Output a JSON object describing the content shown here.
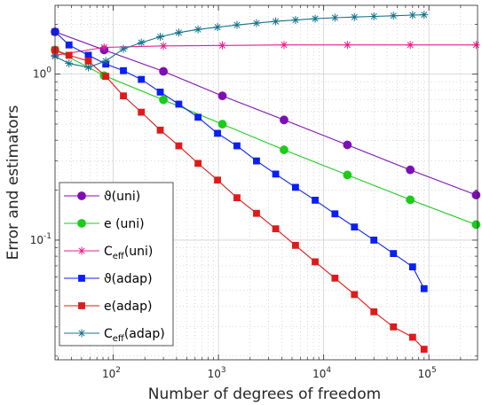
{
  "chart_data": {
    "type": "line",
    "title": "",
    "xlabel": "Number of degrees of freedom",
    "ylabel": "Error and estimators",
    "xscale": "log",
    "yscale": "log",
    "xlim": [
      28,
      290000
    ],
    "ylim": [
      0.019,
      2.6
    ],
    "grid": true,
    "minor_grid": true,
    "legend_position": "bottom-left",
    "x_ticks": [
      {
        "value": 100,
        "base": "10",
        "exp": "2"
      },
      {
        "value": 1000,
        "base": "10",
        "exp": "3"
      },
      {
        "value": 10000,
        "base": "10",
        "exp": "4"
      },
      {
        "value": 100000,
        "base": "10",
        "exp": "5"
      }
    ],
    "y_ticks": [
      {
        "value": 0.1,
        "base": "10",
        "exp": "-1"
      },
      {
        "value": 1,
        "base": "10",
        "exp": "0"
      }
    ],
    "series": [
      {
        "name": "ϑ(uni)",
        "name_main": "ϑ",
        "name_sub": "",
        "name_tail": "(uni)",
        "color": "#7e0eb4",
        "marker": "circle",
        "x": [
          28,
          82,
          300,
          1090,
          4200,
          16800,
          66500,
          281000
        ],
        "y": [
          1.8,
          1.4,
          1.04,
          0.74,
          0.53,
          0.375,
          0.265,
          0.187
        ]
      },
      {
        "name": "e (uni)",
        "name_main": "e (uni)",
        "name_sub": "",
        "name_tail": "",
        "color": "#1bcc1b",
        "marker": "circle",
        "x": [
          28,
          82,
          300,
          1090,
          4200,
          16800,
          66500,
          281000
        ],
        "y": [
          1.4,
          0.98,
          0.7,
          0.5,
          0.35,
          0.247,
          0.175,
          0.124
        ]
      },
      {
        "name": "Ceff(uni)",
        "name_main": "C",
        "name_sub": "eff",
        "name_tail": "(uni)",
        "color": "#e81d8e",
        "marker": "star",
        "x": [
          28,
          82,
          300,
          1090,
          4200,
          16800,
          66500,
          281000
        ],
        "y": [
          1.3,
          1.45,
          1.48,
          1.49,
          1.5,
          1.5,
          1.5,
          1.5
        ]
      },
      {
        "name": "ϑ(adap)",
        "name_main": "ϑ",
        "name_sub": "",
        "name_tail": "(adap)",
        "color": "#0a1ff3",
        "marker": "square",
        "x": [
          28,
          38,
          58,
          85,
          125,
          185,
          280,
          420,
          640,
          980,
          1500,
          2300,
          3500,
          5400,
          8300,
          12800,
          19600,
          30000,
          46000,
          70000,
          90000
        ],
        "y": [
          1.8,
          1.5,
          1.3,
          1.15,
          1.05,
          0.93,
          0.78,
          0.66,
          0.55,
          0.44,
          0.37,
          0.3,
          0.25,
          0.208,
          0.174,
          0.144,
          0.12,
          0.1,
          0.083,
          0.069,
          0.051
        ]
      },
      {
        "name": "e(adap)",
        "name_main": "e(adap)",
        "name_sub": "",
        "name_tail": "",
        "color": "#e01a1a",
        "marker": "square",
        "x": [
          28,
          38,
          58,
          85,
          125,
          185,
          280,
          420,
          640,
          980,
          1500,
          2300,
          3500,
          5400,
          8300,
          12800,
          19600,
          30000,
          46000,
          70000,
          90000
        ],
        "y": [
          1.4,
          1.3,
          1.2,
          0.97,
          0.74,
          0.59,
          0.46,
          0.37,
          0.29,
          0.23,
          0.18,
          0.145,
          0.117,
          0.093,
          0.074,
          0.059,
          0.047,
          0.037,
          0.03,
          0.026,
          0.022
        ]
      },
      {
        "name": "Ceff(adap)",
        "name_main": "C",
        "name_sub": "eff",
        "name_tail": "(adap)",
        "color": "#14738c",
        "marker": "star",
        "x": [
          28,
          38,
          58,
          85,
          125,
          185,
          280,
          420,
          640,
          980,
          1500,
          2300,
          3500,
          5400,
          8300,
          12800,
          19600,
          30000,
          46000,
          70000,
          90000
        ],
        "y": [
          1.28,
          1.16,
          1.1,
          1.2,
          1.42,
          1.55,
          1.68,
          1.78,
          1.86,
          1.92,
          1.98,
          2.03,
          2.08,
          2.12,
          2.16,
          2.19,
          2.21,
          2.23,
          2.25,
          2.27,
          2.28
        ]
      }
    ]
  }
}
